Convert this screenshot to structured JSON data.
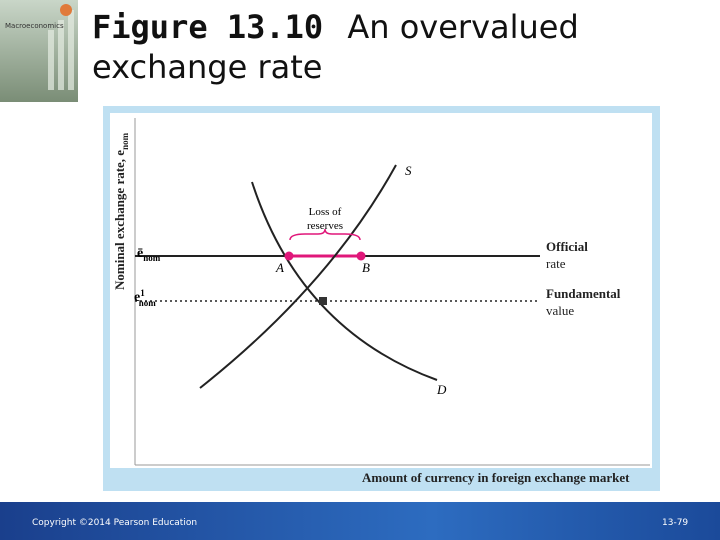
{
  "slide": {
    "cover": {
      "title": "Macroeconomics"
    },
    "title": {
      "figure": "Figure 13.10",
      "caption_line1": "An overvalued",
      "caption_line2": "exchange rate"
    },
    "diagram": {
      "y_axis_label": {
        "text": "Nominal exchange rate, e",
        "subscript": "nom"
      },
      "x_axis_label": "Amount of currency in foreign exchange market",
      "level_official": {
        "symbol": "ē",
        "subscript": "nom"
      },
      "level_fundamental": {
        "symbol": "e",
        "superscript": "1",
        "subscript": "nom"
      },
      "supply_label": "S",
      "demand_label": "D",
      "point_a": "A",
      "point_b": "B",
      "loss_label": [
        "Loss of",
        "reserves"
      ],
      "official_label": [
        "Official",
        "rate"
      ],
      "fundamental_label": [
        "Fundamental",
        "value"
      ]
    },
    "footer": {
      "copyright": "Copyright ©2014 Pearson Education",
      "page": "13-79"
    }
  }
}
